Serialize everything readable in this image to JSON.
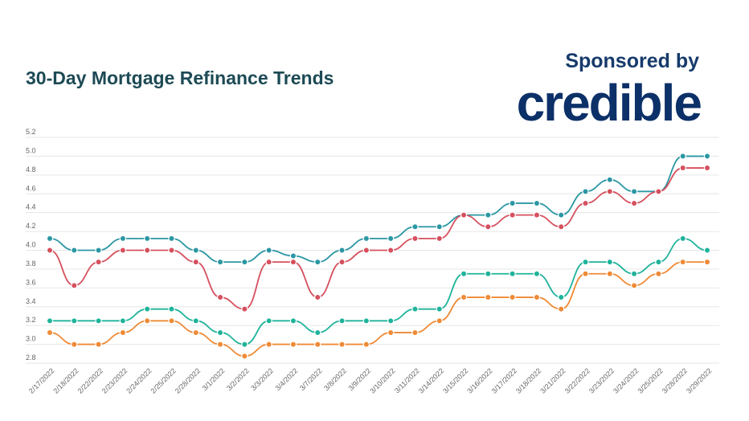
{
  "header": {
    "title": "30-Day Mortgage Refinance Trends",
    "sponsor_label": "Sponsored by",
    "logo_text": "credible"
  },
  "chart_data": {
    "type": "line",
    "title": "30-Day Mortgage Refinance Trends",
    "xlabel": "",
    "ylabel": "",
    "ylim": [
      2.8,
      5.2
    ],
    "yticks": [
      "5.2",
      "5.0",
      "4.8",
      "4.6",
      "4.4",
      "4.2",
      "4.0",
      "3.8",
      "3.6",
      "3.4",
      "3.2",
      "3.0",
      "2.8"
    ],
    "grid": true,
    "categories": [
      "2/17/2022",
      "2/18/2022",
      "2/22/2022",
      "2/23/2022",
      "2/24/2022",
      "2/25/2022",
      "2/28/2022",
      "3/1/2022",
      "3/2/2022",
      "3/3/2022",
      "3/4/2022",
      "3/7/2022",
      "3/8/2022",
      "3/9/2022",
      "3/10/2022",
      "3/11/2022",
      "3/14/2022",
      "3/15/2022",
      "3/16/2022",
      "3/17/2022",
      "3/18/2022",
      "3/21/2022",
      "3/22/2022",
      "3/23/2022",
      "3/24/2022",
      "3/25/2022",
      "3/28/2022",
      "3/29/2022"
    ],
    "series": [
      {
        "color": "#2a97a3",
        "values": [
          4.125,
          4.0,
          4.0,
          4.125,
          4.125,
          4.125,
          4.0,
          3.875,
          3.875,
          4.0,
          3.94,
          3.875,
          4.0,
          4.125,
          4.125,
          4.25,
          4.25,
          4.375,
          4.375,
          4.5,
          4.5,
          4.375,
          4.625,
          4.75,
          4.625,
          4.625,
          5.0,
          5.0
        ]
      },
      {
        "color": "#d6505e",
        "values": [
          4.0,
          3.625,
          3.875,
          4.0,
          4.0,
          4.0,
          3.875,
          3.5,
          3.375,
          3.875,
          3.875,
          3.5,
          3.875,
          4.0,
          4.0,
          4.125,
          4.125,
          4.375,
          4.25,
          4.375,
          4.375,
          4.25,
          4.5,
          4.625,
          4.5,
          4.625,
          4.875,
          4.875
        ]
      },
      {
        "color": "#1fb39b",
        "values": [
          3.25,
          3.25,
          3.25,
          3.25,
          3.375,
          3.375,
          3.25,
          3.125,
          3.0,
          3.25,
          3.25,
          3.125,
          3.25,
          3.25,
          3.25,
          3.375,
          3.375,
          3.75,
          3.75,
          3.75,
          3.75,
          3.5,
          3.875,
          3.875,
          3.75,
          3.875,
          4.125,
          4.0
        ]
      },
      {
        "color": "#ef8a36",
        "values": [
          3.125,
          3.0,
          3.0,
          3.125,
          3.25,
          3.25,
          3.125,
          3.0,
          2.875,
          3.0,
          3.0,
          3.0,
          3.0,
          3.0,
          3.125,
          3.125,
          3.25,
          3.5,
          3.5,
          3.5,
          3.5,
          3.375,
          3.75,
          3.75,
          3.625,
          3.75,
          3.875,
          3.875
        ]
      }
    ]
  }
}
